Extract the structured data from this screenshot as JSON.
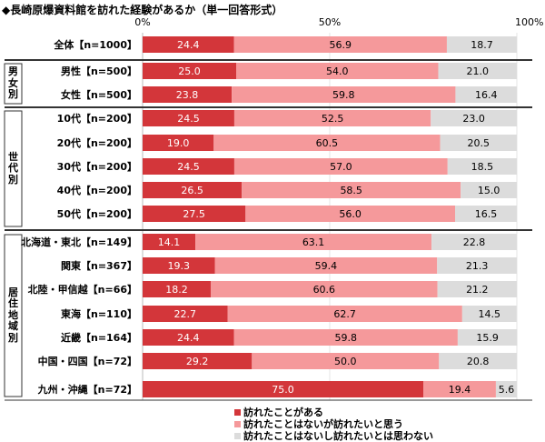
{
  "chart_data": {
    "type": "bar",
    "orientation": "horizontal",
    "stacked": true,
    "title": "◆長崎原爆資料館を訪れた経験があるか（単一回答形式）",
    "xlim": [
      0,
      100
    ],
    "x_ticks": [
      "0%",
      "50%",
      "100%"
    ],
    "legend_position": "bottom",
    "series": [
      {
        "name": "訪れたことがある",
        "color": "#d3363a"
      },
      {
        "name": "訪れたことはないが訪れたいと思う",
        "color": "#f5999b"
      },
      {
        "name": "訪れたことはないし訪れたいとは思わない",
        "color": "#dcdcdc"
      }
    ],
    "groups": [
      {
        "label": "",
        "rows": [
          0
        ]
      },
      {
        "label": "男女別",
        "rows": [
          1,
          2
        ]
      },
      {
        "label": "世代別",
        "rows": [
          3,
          4,
          5,
          6,
          7
        ]
      },
      {
        "label": "居住地域別",
        "rows": [
          8,
          9,
          10,
          11,
          12,
          13,
          14
        ]
      }
    ],
    "categories": [
      "全体【n=1000】",
      "男性【n=500】",
      "女性【n=500】",
      "10代【n=200】",
      "20代【n=200】",
      "30代【n=200】",
      "40代【n=200】",
      "50代【n=200】",
      "北海道・東北【n=149】",
      "関東【n=367】",
      "北陸・甲信越【n=66】",
      "東海【n=110】",
      "近畿【n=164】",
      "中国・四国【n=72】",
      "九州・沖縄【n=72】"
    ],
    "values": [
      [
        24.4,
        56.9,
        18.7
      ],
      [
        25.0,
        54.0,
        21.0
      ],
      [
        23.8,
        59.8,
        16.4
      ],
      [
        24.5,
        52.5,
        23.0
      ],
      [
        19.0,
        60.5,
        20.5
      ],
      [
        24.5,
        57.0,
        18.5
      ],
      [
        26.5,
        58.5,
        15.0
      ],
      [
        27.5,
        56.0,
        16.5
      ],
      [
        14.1,
        63.1,
        22.8
      ],
      [
        19.3,
        59.4,
        21.3
      ],
      [
        18.2,
        60.6,
        21.2
      ],
      [
        22.7,
        62.7,
        14.5
      ],
      [
        24.4,
        59.8,
        15.9
      ],
      [
        29.2,
        50.0,
        20.8
      ],
      [
        75.0,
        19.4,
        5.6
      ]
    ]
  }
}
